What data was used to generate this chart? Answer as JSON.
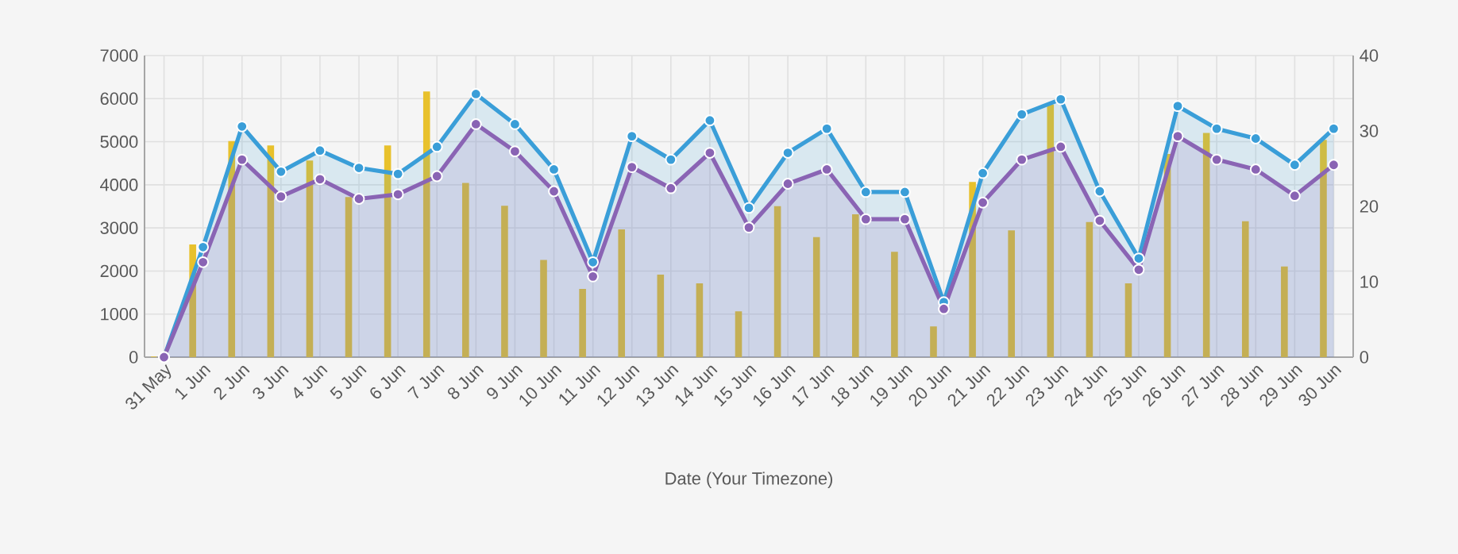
{
  "chart_data": {
    "type": "bar",
    "xlabel": "Date (Your Timezone)",
    "categories": [
      "31 May",
      "1 Jun",
      "2 Jun",
      "3 Jun",
      "4 Jun",
      "5 Jun",
      "6 Jun",
      "7 Jun",
      "8 Jun",
      "9 Jun",
      "10 Jun",
      "11 Jun",
      "12 Jun",
      "13 Jun",
      "14 Jun",
      "15 Jun",
      "16 Jun",
      "17 Jun",
      "18 Jun",
      "19 Jun",
      "20 Jun",
      "21 Jun",
      "22 Jun",
      "23 Jun",
      "24 Jun",
      "25 Jun",
      "26 Jun",
      "27 Jun",
      "28 Jun",
      "29 Jun",
      "30 Jun"
    ],
    "series": [
      {
        "color": "#e8c12c",
        "values": [
          0,
          2600,
          5000,
          4900,
          4550,
          3700,
          4900,
          6150,
          4030,
          3500,
          2240,
          1570,
          2950,
          1900,
          1700,
          1050,
          3490,
          2770,
          3300,
          2430,
          700,
          4050,
          2930,
          5850,
          3120,
          1700,
          4700,
          5190,
          3140,
          2090,
          5030
        ]
      },
      {
        "type": "area",
        "axis": "y2",
        "color": "#3a9ed8",
        "values": [
          0,
          14.6,
          30.6,
          24.6,
          27.4,
          25.1,
          24.3,
          27.9,
          34.9,
          30.9,
          24.9,
          12.6,
          29.3,
          26.2,
          31.4,
          19.8,
          27.1,
          30.3,
          21.9,
          21.9,
          7.3,
          24.4,
          32.2,
          34.2,
          22.0,
          13.1,
          33.3,
          30.3,
          29.0,
          25.5,
          30.3
        ]
      },
      {
        "type": "area",
        "axis": "y2",
        "color": "#8a64b4",
        "values": [
          0,
          12.6,
          26.2,
          21.3,
          23.6,
          21.0,
          21.6,
          24.0,
          30.9,
          27.3,
          22.0,
          10.7,
          25.2,
          22.4,
          27.1,
          17.2,
          23.0,
          24.9,
          18.3,
          18.3,
          6.4,
          20.5,
          26.2,
          27.9,
          18.1,
          11.6,
          29.3,
          26.2,
          24.9,
          21.4,
          25.5
        ]
      }
    ],
    "ylim": [
      0,
      7000
    ],
    "yticks": [
      0,
      1000,
      2000,
      3000,
      4000,
      5000,
      6000,
      7000
    ],
    "y2lim": [
      0,
      40
    ],
    "y2ticks": [
      0,
      10,
      20,
      30,
      40
    ],
    "grid": true,
    "marker": "circle"
  }
}
